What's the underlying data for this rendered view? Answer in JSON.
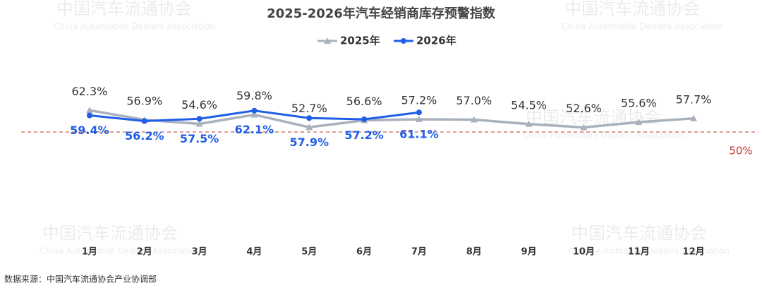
{
  "chart_data": {
    "type": "line",
    "title": "2025-2026年汽车经销商库存预警指数",
    "categories": [
      "1月",
      "2月",
      "3月",
      "4月",
      "5月",
      "6月",
      "7月",
      "8月",
      "9月",
      "10月",
      "11月",
      "12月"
    ],
    "series": [
      {
        "name": "2025年",
        "color": "#a9b1bd",
        "marker": "triangle",
        "values": [
          62.3,
          56.9,
          54.6,
          59.8,
          52.7,
          56.6,
          57.2,
          57.0,
          54.5,
          52.6,
          55.6,
          57.7
        ],
        "value_labels": [
          "62.3%",
          "56.9%",
          "54.6%",
          "59.8%",
          "52.7%",
          "56.6%",
          "57.2%",
          "57.0%",
          "54.5%",
          "52.6%",
          "55.6%",
          "57.7%"
        ]
      },
      {
        "name": "2026年",
        "color": "#1f5ee8",
        "marker": "circle",
        "values": [
          59.4,
          56.2,
          57.5,
          62.1,
          57.9,
          57.2,
          61.1,
          null,
          null,
          null,
          null,
          null
        ],
        "value_labels": [
          "59.4%",
          "56.2%",
          "57.5%",
          "62.1%",
          "57.9%",
          "57.2%",
          "61.1%",
          null,
          null,
          null,
          null,
          null
        ]
      }
    ],
    "ylim": [
      0,
      100
    ],
    "reference_line": {
      "value": 50,
      "label": "50%",
      "color": "#c0392b"
    },
    "legend": "top",
    "source": "数据来源：中国汽车流通协会产业协调部",
    "watermark": {
      "cn": "中国汽车流通协会",
      "en": "China Automobile Dealers Association"
    }
  }
}
